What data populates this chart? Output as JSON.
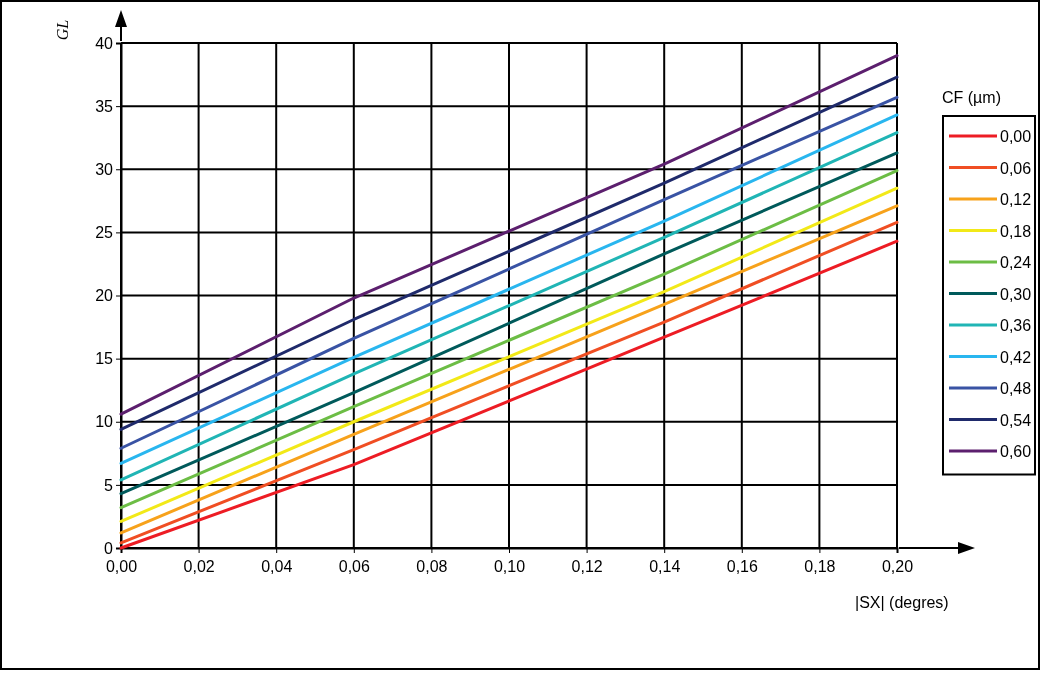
{
  "chart_data": {
    "type": "line",
    "xlabel": "|SX| (degres)",
    "ylabel": "GL",
    "legend_title": "CF (µm)",
    "x": [
      0,
      0.06,
      0.14,
      0.2
    ],
    "xlim": [
      0,
      0.2
    ],
    "ylim": [
      0,
      40
    ],
    "xticks": [
      {
        "value": 0,
        "label": "0,00"
      },
      {
        "value": 0.02,
        "label": "0,02"
      },
      {
        "value": 0.04,
        "label": "0,04"
      },
      {
        "value": 0.06,
        "label": "0,06"
      },
      {
        "value": 0.08,
        "label": "0,08"
      },
      {
        "value": 0.1,
        "label": "0,10"
      },
      {
        "value": 0.12,
        "label": "0,12"
      },
      {
        "value": 0.14,
        "label": "0,14"
      },
      {
        "value": 0.16,
        "label": "0,16"
      },
      {
        "value": 0.18,
        "label": "0,18"
      },
      {
        "value": 0.2,
        "label": "0,20"
      }
    ],
    "yticks": [
      0,
      5,
      10,
      15,
      20,
      25,
      30,
      35,
      40
    ],
    "grid": true,
    "legend": "right",
    "marker": "none",
    "line_style": "solid",
    "series": [
      {
        "name": "0,00",
        "color": "#ed1c24",
        "values": [
          0,
          6.6,
          16.7,
          24.3
        ]
      },
      {
        "name": "0,06",
        "color": "#f04e23",
        "values": [
          0.4,
          7.8,
          17.9,
          25.8
        ]
      },
      {
        "name": "0,12",
        "color": "#f7a21b",
        "values": [
          1.2,
          9.0,
          19.3,
          27.1
        ]
      },
      {
        "name": "0,18",
        "color": "#f2e918",
        "values": [
          2.1,
          10.0,
          20.3,
          28.5
        ]
      },
      {
        "name": "0,24",
        "color": "#6cbd45",
        "values": [
          3.2,
          11.2,
          21.7,
          29.9
        ]
      },
      {
        "name": "0,30",
        "color": "#005a5b",
        "values": [
          4.3,
          12.3,
          23.3,
          31.3
        ]
      },
      {
        "name": "0,36",
        "color": "#20b5b5",
        "values": [
          5.4,
          13.8,
          24.6,
          32.9
        ]
      },
      {
        "name": "0,42",
        "color": "#29b6ef",
        "values": [
          6.7,
          15.1,
          25.9,
          34.3
        ]
      },
      {
        "name": "0,48",
        "color": "#3953a4",
        "values": [
          7.9,
          16.6,
          27.6,
          35.7
        ]
      },
      {
        "name": "0,54",
        "color": "#1f2a6b",
        "values": [
          9.4,
          18.1,
          28.9,
          37.3
        ]
      },
      {
        "name": "0,60",
        "color": "#5c1f6e",
        "values": [
          10.6,
          19.8,
          30.4,
          39.0
        ]
      }
    ]
  }
}
